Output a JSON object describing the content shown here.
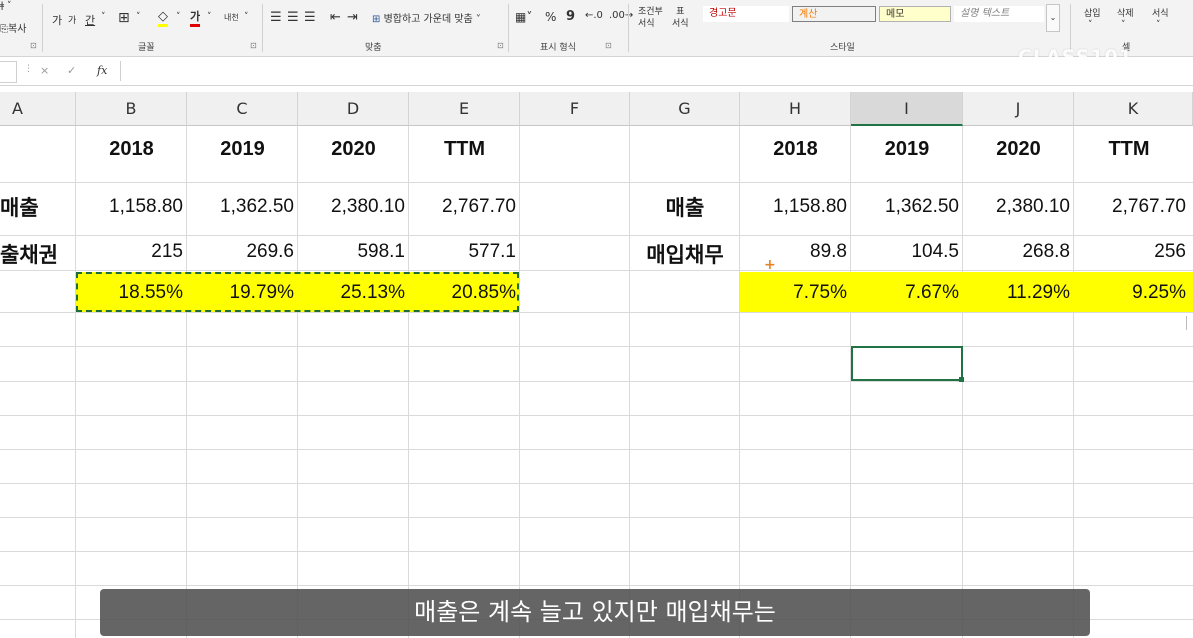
{
  "ribbon": {
    "clipboard": {
      "copy_label": "복사"
    },
    "font": {
      "grow_label": "가",
      "shrink_label": "가",
      "underline_label": "간",
      "border_label": "⊞",
      "fill_label": "◇",
      "fontcolor_label": "가",
      "phonetic_label": "내천",
      "group_label": "글꼴"
    },
    "align": {
      "merge_label": "병합하고 가운데 맞춤",
      "group_label": "맞춤"
    },
    "number": {
      "percent_label": "%",
      "comma_label": "9",
      "group_label": "표시 형식"
    },
    "styles": {
      "cond_format_label_1": "조건부",
      "cond_format_label_2": "서식",
      "table_format_label_1": "표",
      "table_format_label_2": "서식",
      "warning_label": "경고문",
      "calc_label": "계산",
      "memo_label": "메모",
      "desc_label": "설명 텍스트",
      "group_label": "스타일"
    },
    "cells": {
      "insert_label": "삽입",
      "delete_label": "삭제",
      "format_label": "서식",
      "group_label": "셀"
    },
    "watermark": "CLASS101"
  },
  "formula_bar": {
    "cancel_icon": "×",
    "enter_icon": "✓",
    "fx_label": "fx",
    "value": ""
  },
  "columns": [
    "A",
    "B",
    "C",
    "D",
    "E",
    "F",
    "G",
    "H",
    "I",
    "J",
    "K"
  ],
  "selected_column": "I",
  "left_table": {
    "years": [
      "2018",
      "2019",
      "2020",
      "TTM"
    ],
    "row1_label": "매출",
    "row1_values": [
      "1,158.80",
      "1,362.50",
      "2,380.10",
      "2,767.70"
    ],
    "row2_label": "출채권",
    "row2_values": [
      "215",
      "269.6",
      "598.1",
      "577.1"
    ],
    "ratio_values": [
      "18.55%",
      "19.79%",
      "25.13%",
      "20.85%"
    ]
  },
  "right_table": {
    "years": [
      "2018",
      "2019",
      "2020",
      "TTM"
    ],
    "row1_label": "매출",
    "row1_values": [
      "1,158.80",
      "1,362.50",
      "2,380.10",
      "2,767.70"
    ],
    "row2_label": "매입채무",
    "row2_values": [
      "89.8",
      "104.5",
      "268.8",
      "256"
    ],
    "ratio_values": [
      "7.75%",
      "7.67%",
      "11.29%",
      "9.25%"
    ]
  },
  "subtitle": "매출은 계속 늘고 있지만 매입채무는",
  "colors": {
    "highlight": "#ffff00",
    "excel_green": "#217346",
    "warning_text": "#c00000",
    "calc_bg": "#f2f2f2",
    "calc_text": "#fa7d00",
    "memo_bg": "#ffffcc"
  }
}
